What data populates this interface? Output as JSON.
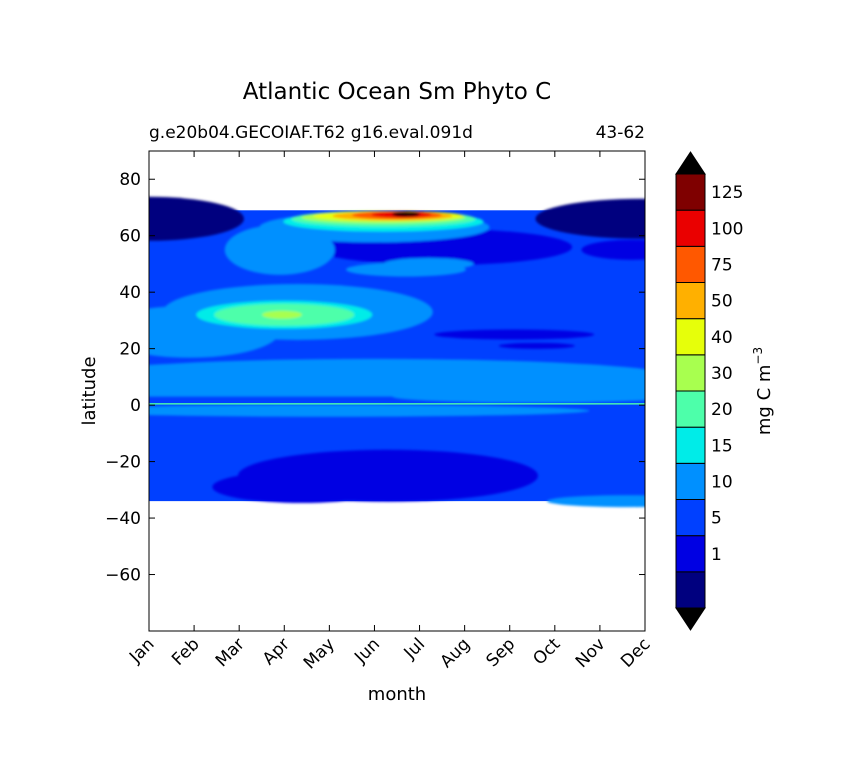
{
  "chart_data": {
    "type": "heatmap",
    "title": "Atlantic Ocean Sm Phyto C",
    "subtitle_left": "g.e20b04.GECOIAF.T62 g16.eval.091d",
    "subtitle_right": "43-62",
    "xlabel": "month",
    "ylabel": "latitude",
    "colorbar_label": "mg C m",
    "colorbar_label_exp": "−3",
    "x_ticks": [
      "Jan",
      "Feb",
      "Mar",
      "Apr",
      "May",
      "Jun",
      "Jul",
      "Aug",
      "Sep",
      "Oct",
      "Nov",
      "Dec"
    ],
    "y_ticks": [
      80,
      60,
      40,
      20,
      0,
      -20,
      -40,
      -60
    ],
    "y_tick_labels": [
      "80",
      "60",
      "40",
      "20",
      "0",
      "−20",
      "−40",
      "−60"
    ],
    "ylim": [
      -80,
      90
    ],
    "data_lat_range": [
      -34,
      69
    ],
    "levels": [
      {
        "label": "",
        "color": "#00007f"
      },
      {
        "label": "1",
        "color": "#0000e3"
      },
      {
        "label": "5",
        "color": "#0040ff"
      },
      {
        "label": "10",
        "color": "#0090ff"
      },
      {
        "label": "15",
        "color": "#00ece8"
      },
      {
        "label": "20",
        "color": "#4dffaa"
      },
      {
        "label": "30",
        "color": "#a8ff4f"
      },
      {
        "label": "40",
        "color": "#e6ff0a"
      },
      {
        "label": "50",
        "color": "#ffb000"
      },
      {
        "label": "75",
        "color": "#ff5800"
      },
      {
        "label": "100",
        "color": "#ea0000"
      },
      {
        "label": "125",
        "color": "#7f0000"
      }
    ],
    "over_color": "#000000",
    "under_color": "#000000"
  }
}
